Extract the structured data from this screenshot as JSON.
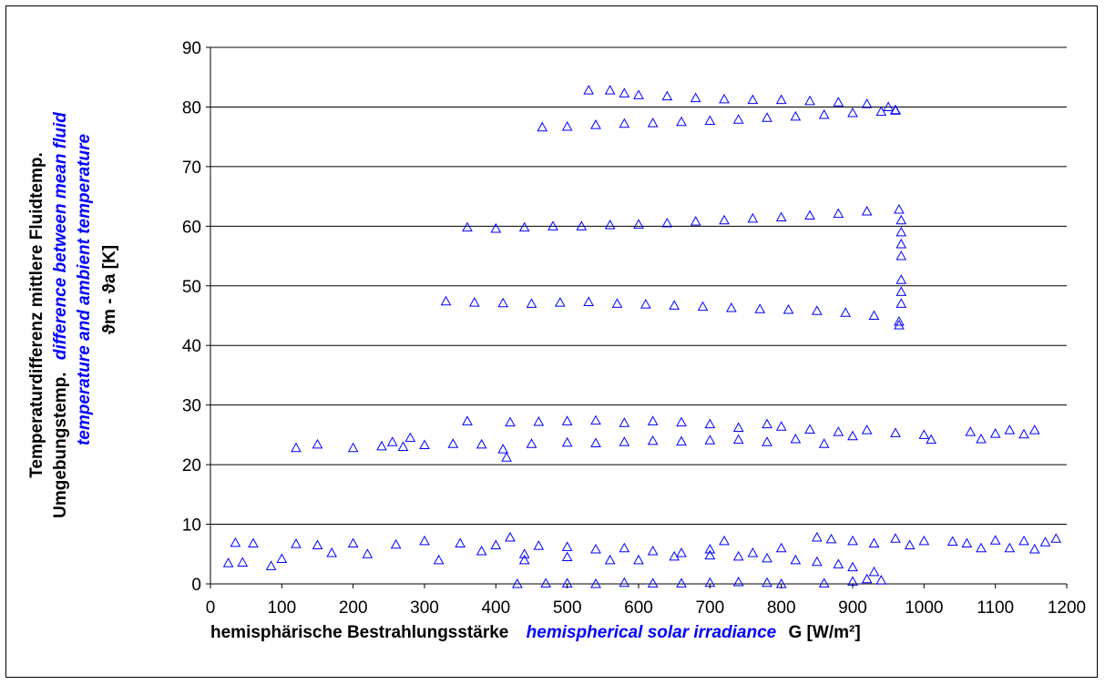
{
  "chart_data": {
    "type": "scatter",
    "xlim": [
      0,
      1200
    ],
    "ylim": [
      0,
      90
    ],
    "x_ticks": [
      0,
      100,
      200,
      300,
      400,
      500,
      600,
      700,
      800,
      900,
      1000,
      1100,
      1200
    ],
    "y_ticks": [
      0,
      10,
      20,
      30,
      40,
      50,
      60,
      70,
      80,
      90
    ],
    "grid": "horizontal",
    "marker": "open-triangle",
    "marker_color": "#0000ff",
    "xlabel": {
      "de": "hemisphärische Bestrahlungsstärke",
      "en": "hemispherical solar irradiance",
      "symbol": "G [W/m²]"
    },
    "ylabel": {
      "de_line1": "Temperaturdifferenz  mittlere  Fluidtemp.",
      "de_line2": "Umgebungstemp.",
      "en_line1": "difference between mean fluid",
      "en_line2": "temperature and ambient temperature",
      "symbol": "ϑm - ϑa [K]"
    },
    "series": [
      {
        "values": [
          [
            530,
            82.8
          ],
          [
            560,
            82.8
          ],
          [
            580,
            82.3
          ],
          [
            600,
            82.0
          ],
          [
            640,
            81.8
          ],
          [
            680,
            81.5
          ],
          [
            720,
            81.3
          ],
          [
            760,
            81.2
          ],
          [
            800,
            81.2
          ],
          [
            840,
            81.0
          ],
          [
            880,
            80.8
          ],
          [
            920,
            80.5
          ],
          [
            950,
            80.0
          ],
          [
            960,
            79.5
          ],
          [
            465,
            76.6
          ],
          [
            500,
            76.7
          ],
          [
            540,
            77.0
          ],
          [
            580,
            77.2
          ],
          [
            620,
            77.3
          ],
          [
            660,
            77.5
          ],
          [
            700,
            77.7
          ],
          [
            740,
            77.9
          ],
          [
            780,
            78.2
          ],
          [
            820,
            78.4
          ],
          [
            860,
            78.7
          ],
          [
            900,
            79.0
          ],
          [
            940,
            79.2
          ],
          [
            960,
            79.4
          ]
        ]
      },
      {
        "values": [
          [
            360,
            59.8
          ],
          [
            400,
            59.6
          ],
          [
            440,
            59.8
          ],
          [
            480,
            60.0
          ],
          [
            520,
            60.0
          ],
          [
            560,
            60.2
          ],
          [
            600,
            60.3
          ],
          [
            640,
            60.5
          ],
          [
            680,
            60.8
          ],
          [
            720,
            61.0
          ],
          [
            760,
            61.3
          ],
          [
            800,
            61.5
          ],
          [
            840,
            61.8
          ],
          [
            880,
            62.1
          ],
          [
            920,
            62.5
          ],
          [
            965,
            62.8
          ],
          [
            968,
            61.0
          ],
          [
            968,
            59.0
          ],
          [
            968,
            57.0
          ],
          [
            968,
            55.0
          ],
          [
            968,
            51.0
          ],
          [
            968,
            49.0
          ],
          [
            968,
            47.0
          ],
          [
            330,
            47.4
          ],
          [
            370,
            47.2
          ],
          [
            410,
            47.1
          ],
          [
            450,
            47.0
          ],
          [
            490,
            47.2
          ],
          [
            530,
            47.3
          ],
          [
            570,
            47.0
          ],
          [
            610,
            46.9
          ],
          [
            650,
            46.7
          ],
          [
            690,
            46.5
          ],
          [
            730,
            46.3
          ],
          [
            770,
            46.1
          ],
          [
            810,
            46.0
          ],
          [
            850,
            45.8
          ],
          [
            890,
            45.5
          ],
          [
            930,
            45.0
          ],
          [
            965,
            44.0
          ],
          [
            965,
            43.4
          ]
        ]
      },
      {
        "values": [
          [
            120,
            22.8
          ],
          [
            150,
            23.4
          ],
          [
            200,
            22.8
          ],
          [
            240,
            23.1
          ],
          [
            270,
            23.0
          ],
          [
            300,
            23.3
          ],
          [
            340,
            23.5
          ],
          [
            380,
            23.4
          ],
          [
            410,
            22.6
          ],
          [
            415,
            21.2
          ],
          [
            450,
            23.5
          ],
          [
            500,
            23.7
          ],
          [
            540,
            23.6
          ],
          [
            580,
            23.8
          ],
          [
            620,
            24.0
          ],
          [
            660,
            23.9
          ],
          [
            700,
            24.1
          ],
          [
            740,
            24.2
          ],
          [
            780,
            23.8
          ],
          [
            820,
            24.3
          ],
          [
            860,
            23.5
          ],
          [
            900,
            24.8
          ],
          [
            255,
            23.8
          ],
          [
            280,
            24.5
          ],
          [
            360,
            27.3
          ],
          [
            420,
            27.1
          ],
          [
            460,
            27.2
          ],
          [
            500,
            27.3
          ],
          [
            540,
            27.4
          ],
          [
            580,
            27.0
          ],
          [
            620,
            27.3
          ],
          [
            660,
            27.1
          ],
          [
            700,
            26.8
          ],
          [
            740,
            26.2
          ],
          [
            780,
            26.8
          ],
          [
            800,
            26.4
          ],
          [
            840,
            25.9
          ],
          [
            880,
            25.5
          ],
          [
            920,
            25.8
          ],
          [
            960,
            25.3
          ],
          [
            1000,
            25.0
          ],
          [
            1010,
            24.2
          ],
          [
            1065,
            25.5
          ],
          [
            1080,
            24.3
          ],
          [
            1100,
            25.2
          ],
          [
            1120,
            25.8
          ],
          [
            1140,
            25.1
          ],
          [
            1155,
            25.8
          ]
        ]
      },
      {
        "values": [
          [
            25,
            3.5
          ],
          [
            45,
            3.6
          ],
          [
            35,
            6.9
          ],
          [
            60,
            6.8
          ],
          [
            85,
            3.0
          ],
          [
            100,
            4.2
          ],
          [
            120,
            6.7
          ],
          [
            150,
            6.5
          ],
          [
            170,
            5.2
          ],
          [
            200,
            6.8
          ],
          [
            220,
            5.0
          ],
          [
            260,
            6.6
          ],
          [
            300,
            7.2
          ],
          [
            320,
            4.0
          ],
          [
            350,
            6.8
          ],
          [
            380,
            5.5
          ],
          [
            400,
            6.5
          ],
          [
            420,
            7.8
          ],
          [
            440,
            4.0
          ],
          [
            460,
            6.4
          ],
          [
            500,
            6.2
          ],
          [
            540,
            5.8
          ],
          [
            580,
            6.0
          ],
          [
            620,
            5.5
          ],
          [
            660,
            5.2
          ],
          [
            700,
            4.8
          ],
          [
            740,
            4.6
          ],
          [
            780,
            4.3
          ],
          [
            820,
            4.0
          ],
          [
            850,
            3.7
          ],
          [
            880,
            3.3
          ],
          [
            900,
            2.8
          ],
          [
            930,
            2.0
          ],
          [
            940,
            0.6
          ],
          [
            440,
            5.0
          ],
          [
            500,
            4.5
          ],
          [
            560,
            4.0
          ],
          [
            600,
            4.0
          ],
          [
            650,
            4.6
          ],
          [
            700,
            5.8
          ],
          [
            720,
            7.2
          ],
          [
            760,
            5.2
          ],
          [
            800,
            6.0
          ],
          [
            850,
            7.8
          ],
          [
            870,
            7.5
          ],
          [
            900,
            7.2
          ],
          [
            930,
            6.8
          ],
          [
            960,
            7.6
          ],
          [
            980,
            6.5
          ],
          [
            1000,
            7.2
          ],
          [
            1040,
            7.1
          ],
          [
            1060,
            6.8
          ],
          [
            1080,
            6.0
          ],
          [
            1100,
            7.3
          ],
          [
            1120,
            6.0
          ],
          [
            1140,
            7.2
          ],
          [
            1155,
            5.8
          ],
          [
            1170,
            7.0
          ],
          [
            1185,
            7.6
          ],
          [
            430,
            0.0
          ],
          [
            470,
            0.1
          ],
          [
            500,
            0.1
          ],
          [
            540,
            0.0
          ],
          [
            580,
            0.2
          ],
          [
            620,
            0.1
          ],
          [
            660,
            0.1
          ],
          [
            700,
            0.2
          ],
          [
            740,
            0.3
          ],
          [
            780,
            0.2
          ],
          [
            800,
            0.0
          ],
          [
            860,
            0.1
          ],
          [
            900,
            0.4
          ],
          [
            920,
            0.8
          ]
        ]
      }
    ]
  }
}
